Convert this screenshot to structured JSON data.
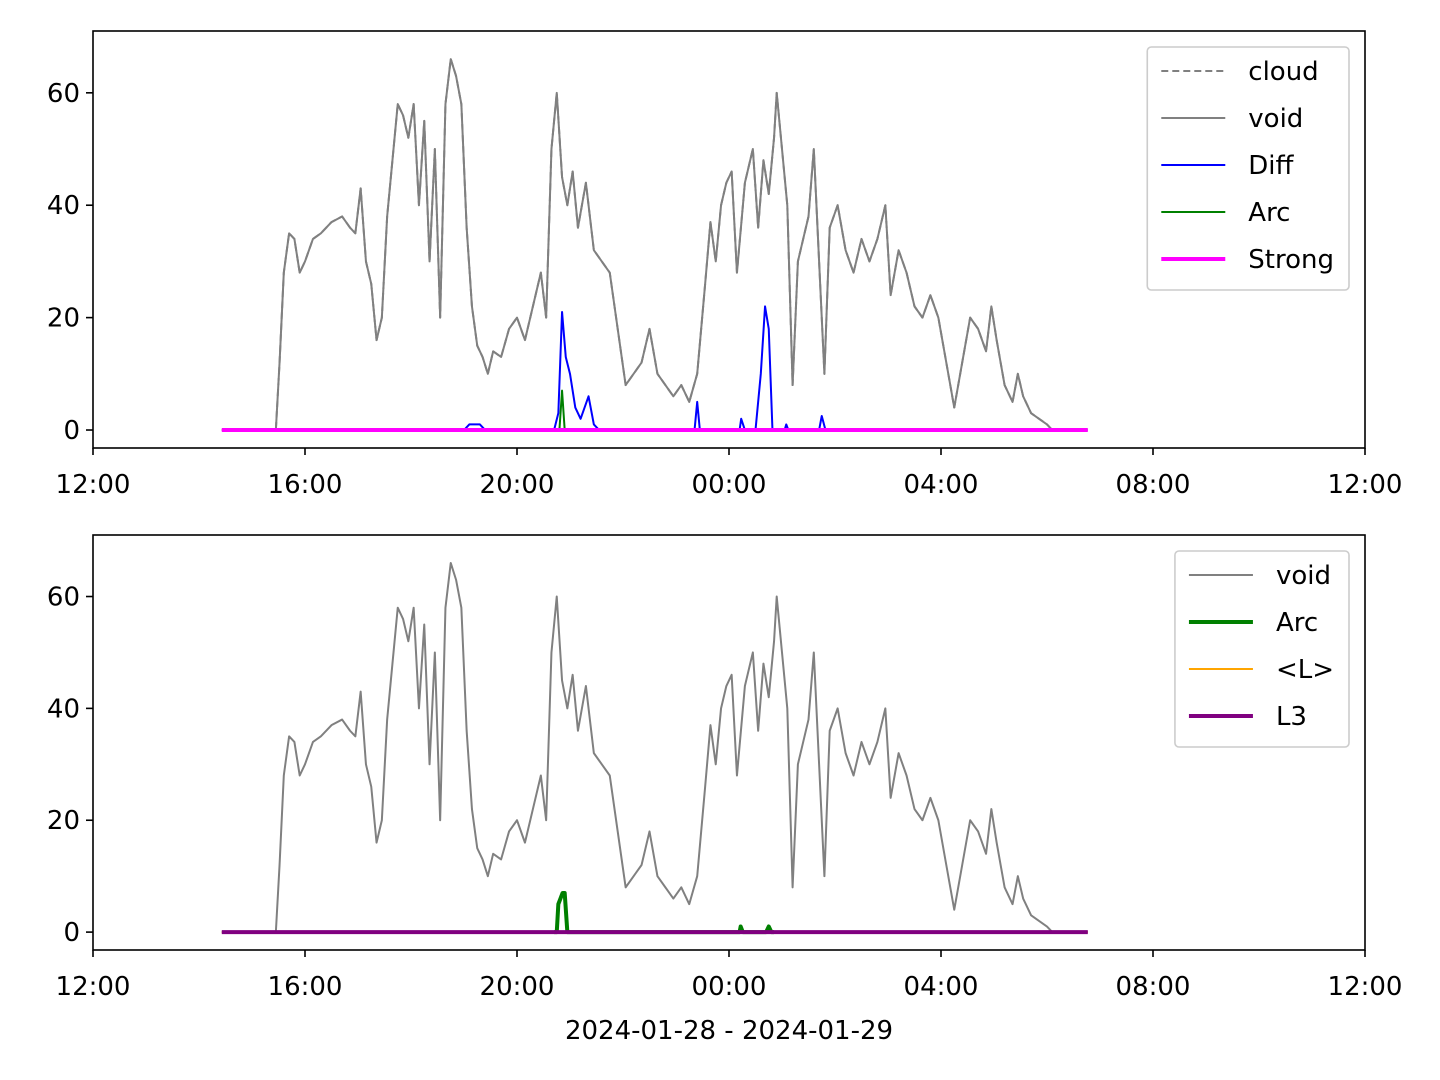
{
  "chart_data": [
    {
      "type": "line",
      "ylim": [
        -3.2,
        71
      ],
      "yticks": [
        0,
        20,
        40,
        60
      ],
      "xlim": [
        0,
        24
      ],
      "xticks": [
        {
          "value": 0,
          "label": "12:00"
        },
        {
          "value": 4,
          "label": "16:00"
        },
        {
          "value": 8,
          "label": "20:00"
        },
        {
          "value": 12,
          "label": "00:00"
        },
        {
          "value": 16,
          "label": "04:00"
        },
        {
          "value": 20,
          "label": "08:00"
        },
        {
          "value": 24,
          "label": "12:00"
        }
      ],
      "legend": "upper right",
      "series": [
        {
          "name": "cloud",
          "color": "#808080",
          "linestyle": "dashed",
          "linewidth": 2,
          "x": [
            2.43,
            3.45,
            3.52,
            3.6,
            3.7,
            3.8,
            3.9,
            4.0,
            4.15,
            4.3,
            4.5,
            4.7,
            4.85,
            4.95,
            5.05,
            5.15,
            5.25,
            5.35,
            5.45,
            5.55,
            5.65,
            5.75,
            5.85,
            5.95,
            6.05,
            6.15,
            6.25,
            6.35,
            6.45,
            6.55,
            6.65,
            6.75,
            6.85,
            6.95,
            7.05,
            7.15,
            7.25,
            7.35,
            7.45,
            7.55,
            7.7,
            7.85,
            8.0,
            8.15,
            8.3,
            8.45,
            8.55,
            8.65,
            8.75,
            8.85,
            8.95,
            9.05,
            9.15,
            9.3,
            9.45,
            9.6,
            9.75,
            9.9,
            10.05,
            10.2,
            10.35,
            10.5,
            10.65,
            10.8,
            10.95,
            11.1,
            11.25,
            11.4,
            11.55,
            11.65,
            11.75,
            11.85,
            11.95,
            12.05,
            12.15,
            12.3,
            12.45,
            12.55,
            12.65,
            12.75,
            12.85,
            12.9,
            13.0,
            13.1,
            13.2,
            13.3,
            13.4,
            13.5,
            13.6,
            13.7,
            13.8,
            13.9,
            14.05,
            14.2,
            14.35,
            14.5,
            14.65,
            14.8,
            14.95,
            15.05,
            15.2,
            15.35,
            15.5,
            15.65,
            15.8,
            15.95,
            16.1,
            16.25,
            16.4,
            16.55,
            16.7,
            16.85,
            16.95,
            17.05,
            17.2,
            17.35,
            17.45,
            17.55,
            17.7,
            17.85,
            18.0,
            18.1,
            18.77
          ],
          "values": [
            0,
            0,
            12,
            28,
            35,
            34,
            28,
            30,
            34,
            35,
            37,
            38,
            36,
            35,
            43,
            30,
            26,
            16,
            20,
            38,
            48,
            58,
            56,
            52,
            58,
            40,
            55,
            30,
            50,
            20,
            58,
            66,
            63,
            58,
            36,
            22,
            15,
            13,
            10,
            14,
            13,
            18,
            20,
            16,
            22,
            28,
            20,
            50,
            60,
            45,
            40,
            46,
            36,
            44,
            32,
            30,
            28,
            18,
            8,
            10,
            12,
            18,
            10,
            8,
            6,
            8,
            5,
            10,
            26,
            37,
            30,
            40,
            44,
            46,
            28,
            44,
            50,
            36,
            48,
            42,
            52,
            60,
            50,
            40,
            8,
            30,
            34,
            38,
            50,
            30,
            10,
            36,
            40,
            32,
            28,
            34,
            30,
            34,
            40,
            24,
            32,
            28,
            22,
            20,
            24,
            20,
            12,
            4,
            12,
            20,
            18,
            14,
            22,
            16,
            8,
            5,
            10,
            6,
            3,
            2,
            1,
            0,
            0
          ]
        },
        {
          "name": "void",
          "color": "#808080",
          "linestyle": "solid",
          "linewidth": 2,
          "x": [
            2.43,
            3.45,
            3.52,
            3.6,
            3.7,
            3.8,
            3.9,
            4.0,
            4.15,
            4.3,
            4.5,
            4.7,
            4.85,
            4.95,
            5.05,
            5.15,
            5.25,
            5.35,
            5.45,
            5.55,
            5.65,
            5.75,
            5.85,
            5.95,
            6.05,
            6.15,
            6.25,
            6.35,
            6.45,
            6.55,
            6.65,
            6.75,
            6.85,
            6.95,
            7.05,
            7.15,
            7.25,
            7.35,
            7.45,
            7.55,
            7.7,
            7.85,
            8.0,
            8.15,
            8.3,
            8.45,
            8.55,
            8.65,
            8.75,
            8.85,
            8.95,
            9.05,
            9.15,
            9.3,
            9.45,
            9.6,
            9.75,
            9.9,
            10.05,
            10.2,
            10.35,
            10.5,
            10.65,
            10.8,
            10.95,
            11.1,
            11.25,
            11.4,
            11.55,
            11.65,
            11.75,
            11.85,
            11.95,
            12.05,
            12.15,
            12.3,
            12.45,
            12.55,
            12.65,
            12.75,
            12.85,
            12.9,
            13.0,
            13.1,
            13.2,
            13.3,
            13.4,
            13.5,
            13.6,
            13.7,
            13.8,
            13.9,
            14.05,
            14.2,
            14.35,
            14.5,
            14.65,
            14.8,
            14.95,
            15.05,
            15.2,
            15.35,
            15.5,
            15.65,
            15.8,
            15.95,
            16.1,
            16.25,
            16.4,
            16.55,
            16.7,
            16.85,
            16.95,
            17.05,
            17.2,
            17.35,
            17.45,
            17.55,
            17.7,
            17.85,
            18.0,
            18.1,
            18.77
          ],
          "values": [
            0,
            0,
            12,
            28,
            35,
            34,
            28,
            30,
            34,
            35,
            37,
            38,
            36,
            35,
            43,
            30,
            26,
            16,
            20,
            38,
            48,
            58,
            56,
            52,
            58,
            40,
            55,
            30,
            50,
            20,
            58,
            66,
            63,
            58,
            36,
            22,
            15,
            13,
            10,
            14,
            13,
            18,
            20,
            16,
            22,
            28,
            20,
            50,
            60,
            45,
            40,
            46,
            36,
            44,
            32,
            30,
            28,
            18,
            8,
            10,
            12,
            18,
            10,
            8,
            6,
            8,
            5,
            10,
            26,
            37,
            30,
            40,
            44,
            46,
            28,
            44,
            50,
            36,
            48,
            42,
            52,
            60,
            50,
            40,
            8,
            30,
            34,
            38,
            50,
            30,
            10,
            36,
            40,
            32,
            28,
            34,
            30,
            34,
            40,
            24,
            32,
            28,
            22,
            20,
            24,
            20,
            12,
            4,
            12,
            20,
            18,
            14,
            22,
            16,
            8,
            5,
            10,
            6,
            3,
            2,
            1,
            0,
            0
          ]
        },
        {
          "name": "Diff",
          "color": "#0000ff",
          "linestyle": "solid",
          "linewidth": 2,
          "x": [
            7.0,
            7.1,
            7.3,
            7.4,
            8.7,
            8.78,
            8.85,
            8.92,
            9.0,
            9.1,
            9.2,
            9.35,
            9.45,
            9.55,
            11.35,
            11.4,
            11.45,
            12.2,
            12.23,
            12.3,
            12.5,
            12.6,
            12.68,
            12.75,
            12.82,
            13.05,
            13.08,
            13.12,
            13.7,
            13.75,
            13.82
          ],
          "values": [
            0,
            1,
            1,
            0,
            0,
            3,
            21,
            13,
            10,
            4,
            2,
            6,
            1,
            0,
            0,
            5,
            0,
            0,
            2,
            0,
            0,
            10,
            22,
            18,
            0,
            0,
            1,
            0,
            0,
            2.5,
            0
          ]
        },
        {
          "name": "Arc",
          "color": "#008000",
          "linestyle": "solid",
          "linewidth": 2,
          "x": [
            8.8,
            8.85,
            8.9
          ],
          "values": [
            0,
            7,
            0
          ]
        },
        {
          "name": "Strong",
          "color": "#ff00ff",
          "linestyle": "solid",
          "linewidth": 4,
          "x": [
            2.43,
            18.77
          ],
          "values": [
            0,
            0
          ]
        }
      ]
    },
    {
      "type": "line",
      "ylim": [
        -3.2,
        71
      ],
      "yticks": [
        0,
        20,
        40,
        60
      ],
      "xlim": [
        0,
        24
      ],
      "xticks": [
        {
          "value": 0,
          "label": "12:00"
        },
        {
          "value": 4,
          "label": "16:00"
        },
        {
          "value": 8,
          "label": "20:00"
        },
        {
          "value": 12,
          "label": "00:00"
        },
        {
          "value": 16,
          "label": "04:00"
        },
        {
          "value": 20,
          "label": "08:00"
        },
        {
          "value": 24,
          "label": "12:00"
        }
      ],
      "xlabel": "2024-01-28 - 2024-01-29",
      "legend": "upper right",
      "series": [
        {
          "name": "void",
          "color": "#808080",
          "linestyle": "solid",
          "linewidth": 2,
          "x": [
            2.43,
            3.45,
            3.52,
            3.6,
            3.7,
            3.8,
            3.9,
            4.0,
            4.15,
            4.3,
            4.5,
            4.7,
            4.85,
            4.95,
            5.05,
            5.15,
            5.25,
            5.35,
            5.45,
            5.55,
            5.65,
            5.75,
            5.85,
            5.95,
            6.05,
            6.15,
            6.25,
            6.35,
            6.45,
            6.55,
            6.65,
            6.75,
            6.85,
            6.95,
            7.05,
            7.15,
            7.25,
            7.35,
            7.45,
            7.55,
            7.7,
            7.85,
            8.0,
            8.15,
            8.3,
            8.45,
            8.55,
            8.65,
            8.75,
            8.85,
            8.95,
            9.05,
            9.15,
            9.3,
            9.45,
            9.6,
            9.75,
            9.9,
            10.05,
            10.2,
            10.35,
            10.5,
            10.65,
            10.8,
            10.95,
            11.1,
            11.25,
            11.4,
            11.55,
            11.65,
            11.75,
            11.85,
            11.95,
            12.05,
            12.15,
            12.3,
            12.45,
            12.55,
            12.65,
            12.75,
            12.85,
            12.9,
            13.0,
            13.1,
            13.2,
            13.3,
            13.4,
            13.5,
            13.6,
            13.7,
            13.8,
            13.9,
            14.05,
            14.2,
            14.35,
            14.5,
            14.65,
            14.8,
            14.95,
            15.05,
            15.2,
            15.35,
            15.5,
            15.65,
            15.8,
            15.95,
            16.1,
            16.25,
            16.4,
            16.55,
            16.7,
            16.85,
            16.95,
            17.05,
            17.2,
            17.35,
            17.45,
            17.55,
            17.7,
            17.85,
            18.0,
            18.1,
            18.77
          ],
          "values": [
            0,
            0,
            12,
            28,
            35,
            34,
            28,
            30,
            34,
            35,
            37,
            38,
            36,
            35,
            43,
            30,
            26,
            16,
            20,
            38,
            48,
            58,
            56,
            52,
            58,
            40,
            55,
            30,
            50,
            20,
            58,
            66,
            63,
            58,
            36,
            22,
            15,
            13,
            10,
            14,
            13,
            18,
            20,
            16,
            22,
            28,
            20,
            50,
            60,
            45,
            40,
            46,
            36,
            44,
            32,
            30,
            28,
            18,
            8,
            10,
            12,
            18,
            10,
            8,
            6,
            8,
            5,
            10,
            26,
            37,
            30,
            40,
            44,
            46,
            28,
            44,
            50,
            36,
            48,
            42,
            52,
            60,
            50,
            40,
            8,
            30,
            34,
            38,
            50,
            30,
            10,
            36,
            40,
            32,
            28,
            34,
            30,
            34,
            40,
            24,
            32,
            28,
            22,
            20,
            24,
            20,
            12,
            4,
            12,
            20,
            18,
            14,
            22,
            16,
            8,
            5,
            10,
            6,
            3,
            2,
            1,
            0,
            0
          ]
        },
        {
          "name": "Arc",
          "color": "#008000",
          "linestyle": "solid",
          "linewidth": 4,
          "x": [
            8.7,
            8.75,
            8.78,
            8.82,
            8.86,
            8.9,
            8.95,
            12.2,
            12.22,
            12.26,
            12.7,
            12.75,
            12.8,
            12.85
          ],
          "values": [
            0,
            0,
            5,
            6,
            7,
            7,
            0,
            0,
            1,
            0,
            0,
            1,
            0,
            0
          ]
        },
        {
          "name": "<L>",
          "color": "#ffa500",
          "linestyle": "solid",
          "linewidth": 2,
          "x": [
            2.43,
            18.77
          ],
          "values": [
            0,
            0
          ]
        },
        {
          "name": "L3",
          "color": "#800080",
          "linestyle": "solid",
          "linewidth": 4,
          "x": [
            2.43,
            18.77
          ],
          "values": [
            0,
            0
          ]
        }
      ]
    }
  ]
}
